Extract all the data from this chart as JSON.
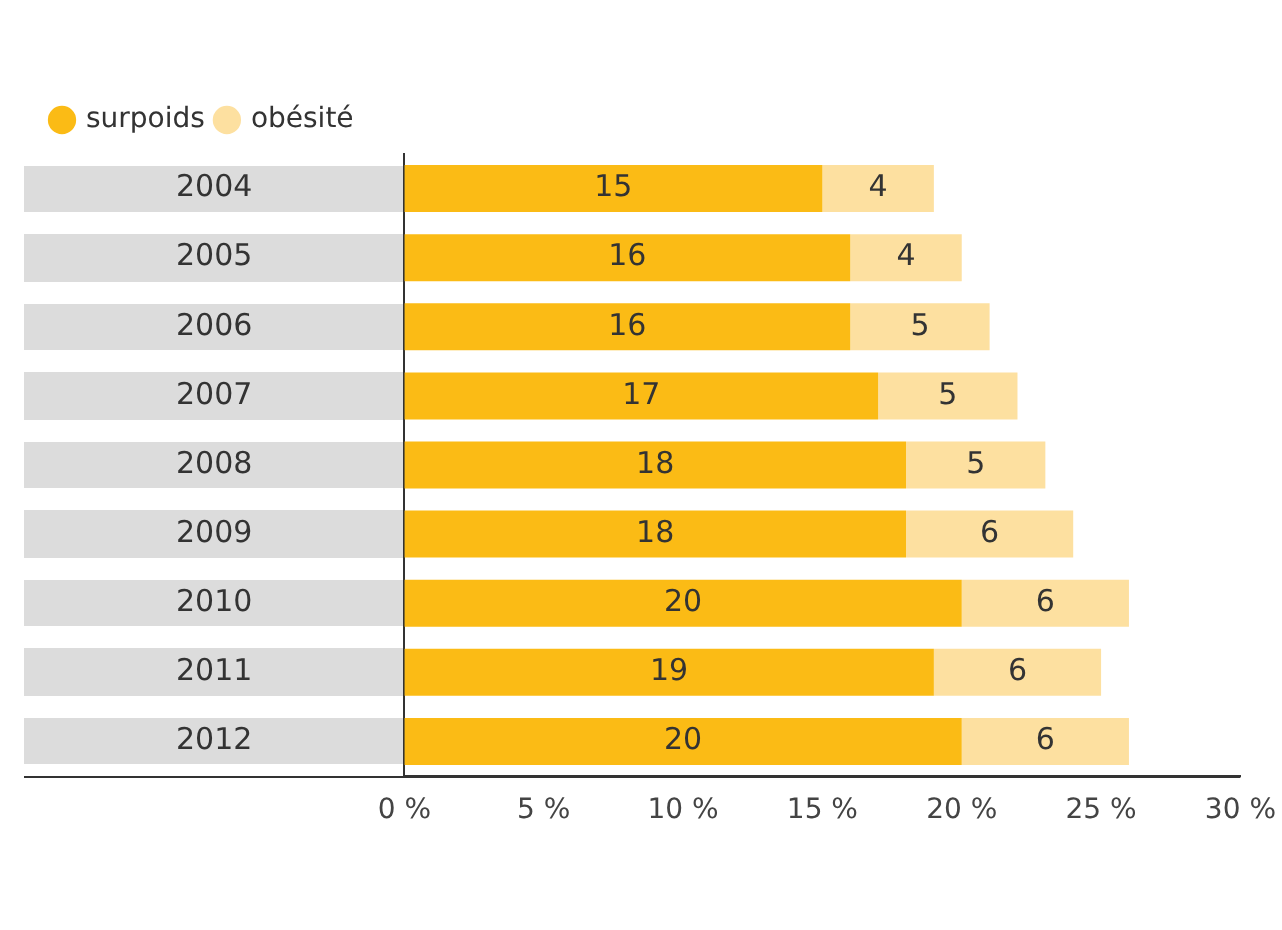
{
  "chart_data": {
    "type": "bar",
    "orientation": "horizontal",
    "stacked": true,
    "categories": [
      "2004",
      "2005",
      "2006",
      "2007",
      "2008",
      "2009",
      "2010",
      "2011",
      "2012"
    ],
    "series": [
      {
        "name": "surpoids",
        "color": "#fbbb15",
        "values": [
          15,
          16,
          16,
          17,
          18,
          18,
          20,
          19,
          20
        ]
      },
      {
        "name": "obésité",
        "color": "#fde0a0",
        "values": [
          4,
          4,
          5,
          5,
          5,
          6,
          6,
          6,
          6
        ]
      }
    ],
    "xlim": [
      0,
      30
    ],
    "xticks": [
      {
        "value": 0,
        "label": "0 %"
      },
      {
        "value": 5,
        "label": "5 %"
      },
      {
        "value": 10,
        "label": "10 %"
      },
      {
        "value": 15,
        "label": "15 %"
      },
      {
        "value": 20,
        "label": "20 %"
      },
      {
        "value": 25,
        "label": "25 %"
      },
      {
        "value": 30,
        "label": "30 %"
      }
    ],
    "data_labels": true,
    "grid": false,
    "legend": "top left"
  }
}
